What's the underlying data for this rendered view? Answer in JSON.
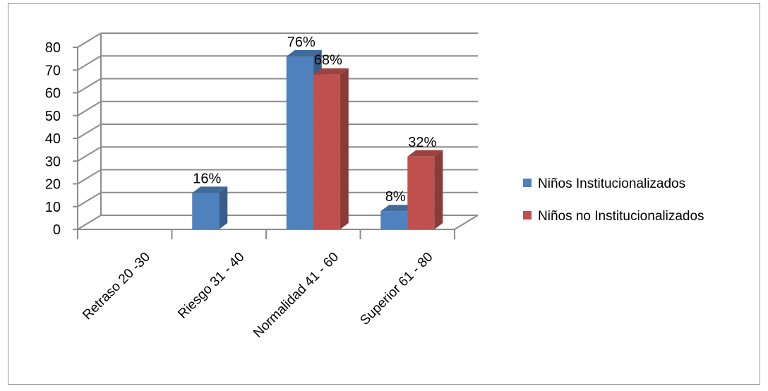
{
  "chart_data": {
    "type": "bar",
    "categories": [
      "Retraso  20 -30",
      "Riesgo 31 - 40",
      "Normalidad 41 - 60",
      "Superior  61 - 80"
    ],
    "series": [
      {
        "name": "Niños Institucionalizados",
        "color": "#4f81bd",
        "values": [
          0,
          16,
          76,
          8
        ],
        "labels": [
          "",
          "16%",
          "76%",
          "8%"
        ]
      },
      {
        "name": "Niños no Institucionalizados",
        "color": "#c0504d",
        "values": [
          0,
          0,
          68,
          32
        ],
        "labels": [
          "",
          "",
          "68%",
          "32%"
        ]
      }
    ],
    "ylim": [
      0,
      80
    ],
    "yticks": [
      0,
      10,
      20,
      30,
      40,
      50,
      60,
      70,
      80
    ],
    "grid": true,
    "three_d": true,
    "legend_position": "right"
  }
}
